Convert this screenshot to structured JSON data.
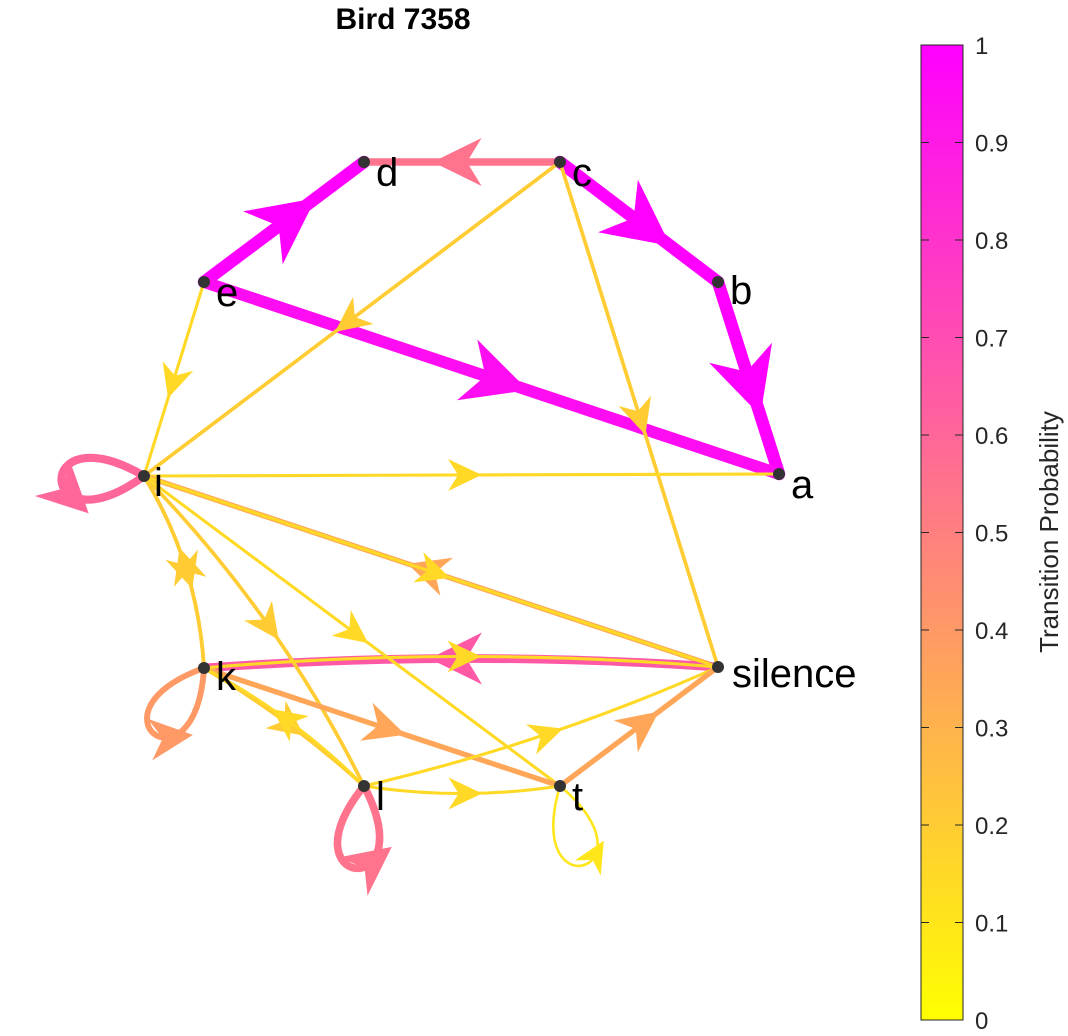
{
  "title": "Bird 7358",
  "colorbar": {
    "label": "Transition Probability",
    "ticks": [
      "0",
      "0.1",
      "0.2",
      "0.3",
      "0.4",
      "0.5",
      "0.6",
      "0.7",
      "0.8",
      "0.9",
      "1"
    ],
    "low_color": "#ffff00",
    "high_color": "#ff00ff"
  },
  "nodes": [
    {
      "id": "a",
      "label": "a"
    },
    {
      "id": "b",
      "label": "b"
    },
    {
      "id": "c",
      "label": "c"
    },
    {
      "id": "d",
      "label": "d"
    },
    {
      "id": "e",
      "label": "e"
    },
    {
      "id": "i",
      "label": "i"
    },
    {
      "id": "k",
      "label": "k"
    },
    {
      "id": "l",
      "label": "l"
    },
    {
      "id": "t",
      "label": "t"
    },
    {
      "id": "silence",
      "label": "silence"
    }
  ],
  "edges": [
    {
      "from": "e",
      "to": "d",
      "p": 1.0
    },
    {
      "from": "c",
      "to": "d",
      "p": 0.55
    },
    {
      "from": "c",
      "to": "b",
      "p": 1.0
    },
    {
      "from": "b",
      "to": "a",
      "p": 1.0
    },
    {
      "from": "e",
      "to": "a",
      "p": 0.95
    },
    {
      "from": "c",
      "to": "i",
      "p": 0.2
    },
    {
      "from": "c",
      "to": "silence",
      "p": 0.2
    },
    {
      "from": "e",
      "to": "i",
      "p": 0.15
    },
    {
      "from": "i",
      "to": "a",
      "p": 0.15
    },
    {
      "from": "i",
      "to": "i",
      "p": 0.6
    },
    {
      "from": "silence",
      "to": "i",
      "p": 0.35
    },
    {
      "from": "silence",
      "to": "k",
      "p": 0.65
    },
    {
      "from": "i",
      "to": "k",
      "p": 0.2
    },
    {
      "from": "k",
      "to": "i",
      "p": 0.2
    },
    {
      "from": "i",
      "to": "l",
      "p": 0.2
    },
    {
      "from": "i",
      "to": "t",
      "p": 0.15
    },
    {
      "from": "i",
      "to": "silence",
      "p": 0.15
    },
    {
      "from": "k",
      "to": "k",
      "p": 0.4
    },
    {
      "from": "k",
      "to": "l",
      "p": 0.2
    },
    {
      "from": "k",
      "to": "t",
      "p": 0.35
    },
    {
      "from": "k",
      "to": "silence",
      "p": 0.15
    },
    {
      "from": "l",
      "to": "l",
      "p": 0.55
    },
    {
      "from": "l",
      "to": "k",
      "p": 0.15
    },
    {
      "from": "l",
      "to": "silence",
      "p": 0.15
    },
    {
      "from": "l",
      "to": "t",
      "p": 0.15
    },
    {
      "from": "t",
      "to": "t",
      "p": 0.1
    },
    {
      "from": "t",
      "to": "silence",
      "p": 0.35
    }
  ]
}
